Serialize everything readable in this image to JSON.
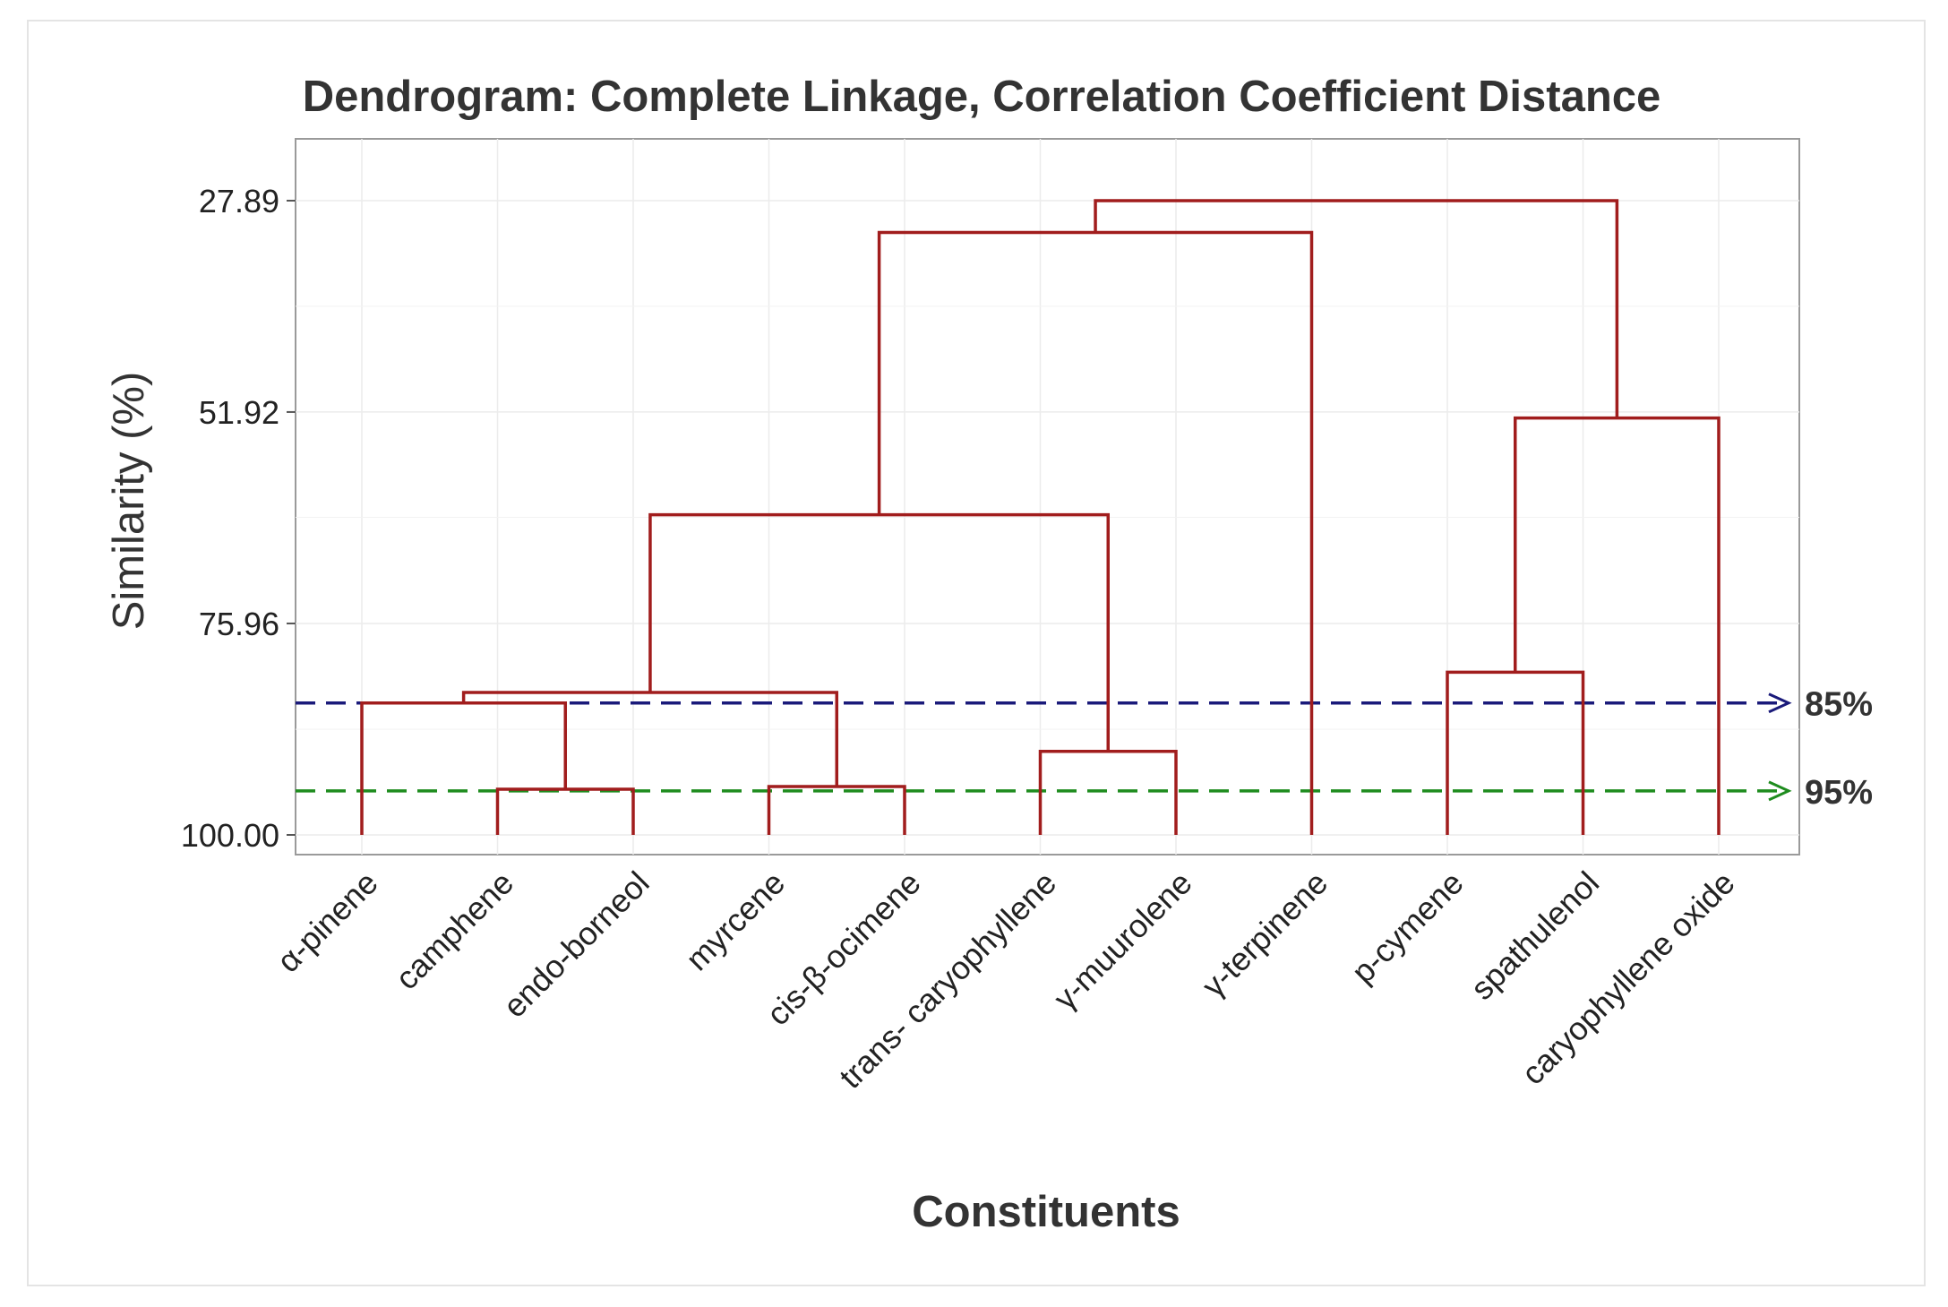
{
  "chart_data": {
    "type": "dendrogram",
    "title": "Dendrogram: Complete Linkage, Correlation Coefficient Distance",
    "xlabel": "Constituents",
    "ylabel": "Similarity (%)",
    "yticks": [
      "27.89",
      "51.92",
      "75.96",
      "100.00"
    ],
    "ytick_values": [
      27.89,
      51.92,
      75.96,
      100.0
    ],
    "ylim": [
      20.0,
      100.0
    ],
    "leaves": [
      "α-pinene",
      "camphene",
      "endo-borneol",
      "myrcene",
      "cis-β-ocimene",
      "trans- caryophyllene",
      "γ-muurolene",
      "γ-terpinene",
      "p-cymene",
      "spathulenol",
      "caryophyllene oxide"
    ],
    "merges": [
      {
        "left": "leaf:1",
        "right": "leaf:2",
        "similarity": 94.8
      },
      {
        "left": "leaf:3",
        "right": "leaf:4",
        "similarity": 94.5
      },
      {
        "left": "leaf:5",
        "right": "leaf:6",
        "similarity": 90.5
      },
      {
        "left": "leaf:0",
        "right": "node:0",
        "similarity": 85.0
      },
      {
        "left": "node:3",
        "right": "node:1",
        "similarity": 83.8
      },
      {
        "left": "leaf:8",
        "right": "leaf:9",
        "similarity": 81.5
      },
      {
        "left": "node:4",
        "right": "node:2",
        "similarity": 63.6
      },
      {
        "left": "node:6",
        "right": "leaf:7",
        "similarity": 31.5
      },
      {
        "left": "node:5",
        "right": "leaf:10",
        "similarity": 52.6
      },
      {
        "left": "node:7",
        "right": "node:8",
        "similarity": 27.89
      }
    ],
    "cut_lines": [
      {
        "label": "85%",
        "value": 85.0,
        "color": "#1a1a7a"
      },
      {
        "label": "95%",
        "value": 95.0,
        "color": "#1e8c1e"
      }
    ],
    "branch_color": "#a11d1d",
    "grid": true
  }
}
